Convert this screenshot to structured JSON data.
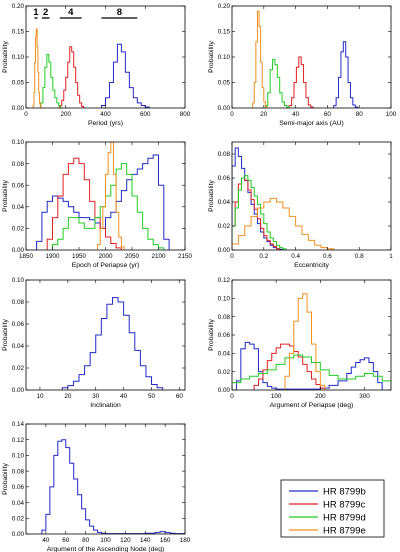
{
  "colors": {
    "HR 8799b": "#1f2bc4",
    "HR 8799c": "#e02020",
    "HR 8799d": "#22cc22",
    "HR 8799e": "#f0901e"
  },
  "legend": [
    {
      "name": "HR 8799b",
      "color": "#1f2bc4"
    },
    {
      "name": "HR 8799c",
      "color": "#e02020"
    },
    {
      "name": "HR 8799d",
      "color": "#22cc22"
    },
    {
      "name": "HR 8799e",
      "color": "#f0901e"
    }
  ],
  "chart_data": [
    {
      "type": "histogram",
      "title": "",
      "xlabel": "Period (yrs)",
      "ylabel": "Probability",
      "xlim": [
        0,
        800
      ],
      "ylim": [
        0,
        0.2
      ],
      "xticks": [
        0,
        200,
        400,
        600,
        800
      ],
      "yticks": [
        0.0,
        0.05,
        0.1,
        0.15,
        0.2
      ],
      "ytick_labels": [
        "0.00",
        "0.05",
        "0.10",
        "0.15",
        "0.20"
      ],
      "annotations": [
        {
          "label": "1",
          "range": [
            42,
            58
          ]
        },
        {
          "label": "2",
          "range": [
            80,
            118
          ]
        },
        {
          "label": "4",
          "range": [
            170,
            280
          ]
        },
        {
          "label": "8",
          "range": [
            380,
            560
          ]
        }
      ],
      "series": [
        {
          "name": "HR 8799b",
          "bins": [
            380,
            400,
            420,
            440,
            460,
            480,
            500,
            520,
            540,
            560,
            580,
            600,
            620
          ],
          "values": [
            0.005,
            0.02,
            0.05,
            0.09,
            0.125,
            0.11,
            0.07,
            0.04,
            0.02,
            0.01,
            0.005,
            0.002
          ]
        },
        {
          "name": "HR 8799c",
          "bins": [
            170,
            180,
            190,
            200,
            210,
            220,
            230,
            240,
            250,
            260,
            270,
            280,
            290
          ],
          "values": [
            0.005,
            0.015,
            0.035,
            0.06,
            0.09,
            0.12,
            0.11,
            0.08,
            0.05,
            0.025,
            0.01,
            0.003
          ]
        },
        {
          "name": "HR 8799d",
          "bins": [
            75,
            85,
            95,
            105,
            115,
            125,
            135,
            145,
            155,
            165,
            175
          ],
          "values": [
            0.01,
            0.04,
            0.08,
            0.105,
            0.09,
            0.06,
            0.035,
            0.02,
            0.01,
            0.004
          ]
        },
        {
          "name": "HR 8799e",
          "bins": [
            36,
            40,
            44,
            48,
            52,
            56,
            60,
            64,
            68,
            72,
            76
          ],
          "values": [
            0.005,
            0.03,
            0.09,
            0.14,
            0.155,
            0.12,
            0.07,
            0.03,
            0.01,
            0.003
          ]
        }
      ]
    },
    {
      "type": "histogram",
      "title": "",
      "xlabel": "Semi-major axis (AU)",
      "ylabel": "Probability",
      "xlim": [
        0,
        100
      ],
      "ylim": [
        0,
        0.2
      ],
      "xticks": [
        0,
        20,
        40,
        60,
        80,
        100
      ],
      "yticks": [
        0.0,
        0.05,
        0.1,
        0.15,
        0.2
      ],
      "ytick_labels": [
        "0.00",
        "0.05",
        "0.10",
        "0.15",
        "0.20"
      ],
      "series": [
        {
          "name": "HR 8799b",
          "bins": [
            64,
            65.5,
            67,
            68.5,
            70,
            71.5,
            73,
            74.5,
            76,
            77.5,
            79
          ],
          "values": [
            0.005,
            0.02,
            0.06,
            0.11,
            0.13,
            0.1,
            0.05,
            0.02,
            0.006,
            0.002
          ]
        },
        {
          "name": "HR 8799c",
          "bins": [
            36,
            37.5,
            39,
            40.5,
            42,
            43.5,
            45,
            46.5,
            48,
            49.5,
            51
          ],
          "values": [
            0.005,
            0.02,
            0.05,
            0.08,
            0.1,
            0.085,
            0.05,
            0.02,
            0.006,
            0.002
          ]
        },
        {
          "name": "HR 8799d",
          "bins": [
            21,
            22.5,
            24,
            25.5,
            27,
            28.5,
            30,
            31.5,
            33,
            34.5,
            36
          ],
          "values": [
            0.005,
            0.03,
            0.075,
            0.095,
            0.085,
            0.06,
            0.03,
            0.012,
            0.005,
            0.002
          ]
        },
        {
          "name": "HR 8799e",
          "bins": [
            13,
            14,
            15,
            16,
            17,
            18,
            19,
            20,
            21,
            22
          ],
          "values": [
            0.01,
            0.05,
            0.13,
            0.19,
            0.16,
            0.09,
            0.04,
            0.012,
            0.003
          ]
        }
      ]
    },
    {
      "type": "histogram",
      "title": "",
      "xlabel": "Epoch of Periapse (yr)",
      "ylabel": "Probability",
      "xlim": [
        1850,
        2150
      ],
      "ylim": [
        0,
        0.1
      ],
      "xticks": [
        1850,
        1900,
        1950,
        2000,
        2050,
        2100,
        2150
      ],
      "yticks": [
        0.0,
        0.02,
        0.04,
        0.06,
        0.08,
        0.1
      ],
      "ytick_labels": [
        "0.00",
        "0.02",
        "0.04",
        "0.06",
        "0.08",
        "0.10"
      ],
      "series": [
        {
          "name": "HR 8799b",
          "bins": [
            1870,
            1880,
            1890,
            1900,
            1910,
            1920,
            1930,
            1940,
            1950,
            1960,
            1970,
            1980,
            1990,
            2000,
            2010,
            2020,
            2030,
            2040,
            2050,
            2060,
            2070,
            2080,
            2090,
            2100,
            2110,
            2120
          ],
          "values": [
            0.008,
            0.035,
            0.045,
            0.05,
            0.048,
            0.045,
            0.04,
            0.035,
            0.03,
            0.03,
            0.028,
            0.025,
            0.02,
            0.03,
            0.035,
            0.045,
            0.055,
            0.065,
            0.07,
            0.075,
            0.08,
            0.085,
            0.088,
            0.06,
            0.01
          ]
        },
        {
          "name": "HR 8799c",
          "bins": [
            1890,
            1900,
            1910,
            1920,
            1930,
            1940,
            1950,
            1960,
            1970,
            1980,
            1990,
            2000,
            2010,
            2020,
            2030
          ],
          "values": [
            0.01,
            0.03,
            0.05,
            0.07,
            0.08,
            0.085,
            0.08,
            0.065,
            0.045,
            0.03,
            0.02,
            0.012,
            0.006,
            0.002
          ]
        },
        {
          "name": "HR 8799d",
          "bins": [
            1900,
            1910,
            1920,
            1930,
            1940,
            1950,
            1960,
            1970,
            1980,
            1990,
            2000,
            2010,
            2020,
            2030,
            2040,
            2050,
            2060,
            2070,
            2080,
            2090,
            2100,
            2110
          ],
          "values": [
            0.005,
            0.01,
            0.02,
            0.03,
            0.03,
            0.025,
            0.02,
            0.02,
            0.03,
            0.04,
            0.05,
            0.06,
            0.075,
            0.08,
            0.07,
            0.05,
            0.035,
            0.02,
            0.01,
            0.005,
            0.002
          ]
        },
        {
          "name": "HR 8799e",
          "bins": [
            1985,
            1990,
            1995,
            2000,
            2005,
            2010,
            2015,
            2020,
            2025,
            2030,
            2035
          ],
          "values": [
            0.005,
            0.02,
            0.04,
            0.07,
            0.09,
            0.1,
            0.07,
            0.035,
            0.012,
            0.003
          ]
        }
      ]
    },
    {
      "type": "histogram",
      "title": "",
      "xlabel": "Eccentricity",
      "ylabel": "Probability",
      "xlim": [
        0,
        1
      ],
      "ylim": [
        0,
        0.09
      ],
      "xticks": [
        0.0,
        0.2,
        0.4,
        0.6,
        0.8,
        1.0
      ],
      "yticks": [
        0.0,
        0.02,
        0.04,
        0.06,
        0.08
      ],
      "ytick_labels": [
        "0.00",
        "0.02",
        "0.04",
        "0.06",
        "0.08"
      ],
      "series": [
        {
          "name": "HR 8799b",
          "bins": [
            0.0,
            0.02,
            0.04,
            0.06,
            0.08,
            0.1,
            0.12,
            0.14,
            0.16,
            0.18,
            0.2,
            0.22,
            0.24,
            0.26,
            0.28,
            0.3,
            0.32
          ],
          "values": [
            0.07,
            0.085,
            0.078,
            0.068,
            0.058,
            0.048,
            0.038,
            0.03,
            0.022,
            0.015,
            0.01,
            0.007,
            0.004,
            0.002,
            0.001,
            0.0005
          ]
        },
        {
          "name": "HR 8799c",
          "bins": [
            0.0,
            0.02,
            0.04,
            0.06,
            0.08,
            0.1,
            0.12,
            0.14,
            0.16,
            0.18,
            0.2,
            0.22,
            0.24,
            0.26,
            0.28,
            0.3
          ],
          "values": [
            0.02,
            0.04,
            0.055,
            0.06,
            0.058,
            0.05,
            0.042,
            0.034,
            0.026,
            0.018,
            0.012,
            0.008,
            0.005,
            0.003,
            0.001
          ]
        },
        {
          "name": "HR 8799d",
          "bins": [
            0.0,
            0.02,
            0.04,
            0.06,
            0.08,
            0.1,
            0.12,
            0.14,
            0.16,
            0.18,
            0.2,
            0.22,
            0.24,
            0.26,
            0.28,
            0.3,
            0.32,
            0.34
          ],
          "values": [
            0.02,
            0.035,
            0.05,
            0.06,
            0.062,
            0.058,
            0.052,
            0.045,
            0.038,
            0.03,
            0.022,
            0.015,
            0.01,
            0.007,
            0.004,
            0.002,
            0.001
          ]
        },
        {
          "name": "HR 8799e",
          "bins": [
            0.0,
            0.04,
            0.08,
            0.12,
            0.16,
            0.2,
            0.24,
            0.28,
            0.32,
            0.36,
            0.4,
            0.44,
            0.48,
            0.52,
            0.56,
            0.6,
            0.64
          ],
          "values": [
            0.005,
            0.012,
            0.02,
            0.028,
            0.035,
            0.04,
            0.043,
            0.04,
            0.035,
            0.028,
            0.02,
            0.013,
            0.008,
            0.004,
            0.002,
            0.001
          ]
        }
      ]
    },
    {
      "type": "histogram",
      "title": "",
      "xlabel": "Inclination",
      "ylabel": "Probability",
      "xlim": [
        5,
        62
      ],
      "ylim": [
        0,
        0.1
      ],
      "xticks": [
        10,
        20,
        30,
        40,
        50,
        60
      ],
      "yticks": [
        0.0,
        0.02,
        0.04,
        0.06,
        0.08,
        0.1
      ],
      "ytick_labels": [
        "0.00",
        "0.02",
        "0.04",
        "0.06",
        "0.08",
        "0.10"
      ],
      "series": [
        {
          "name": "HR 8799b",
          "bins": [
            18,
            20,
            22,
            24,
            26,
            28,
            30,
            32,
            34,
            36,
            38,
            40,
            42,
            44,
            46,
            48,
            50,
            52,
            54
          ],
          "values": [
            0.002,
            0.004,
            0.008,
            0.014,
            0.022,
            0.034,
            0.05,
            0.065,
            0.078,
            0.084,
            0.08,
            0.068,
            0.052,
            0.036,
            0.022,
            0.012,
            0.005,
            0.002
          ]
        }
      ]
    },
    {
      "type": "histogram",
      "title": "",
      "xlabel": "Argument of Periapse (deg)",
      "ylabel": "Probability",
      "xlim": [
        0,
        360
      ],
      "ylim": [
        0,
        0.12
      ],
      "xticks": [
        0,
        100,
        200,
        300
      ],
      "yticks": [
        0.0,
        0.02,
        0.04,
        0.06,
        0.08,
        0.1,
        0.12
      ],
      "ytick_labels": [
        "0.00",
        "0.02",
        "0.04",
        "0.06",
        "0.08",
        "0.10",
        "0.12"
      ],
      "series": [
        {
          "name": "HR 8799b",
          "bins": [
            10,
            20,
            30,
            40,
            50,
            60,
            70,
            80,
            90,
            100,
            120,
            140,
            160,
            180,
            200,
            220,
            240,
            260,
            270,
            280,
            290,
            300,
            310,
            320,
            330,
            340
          ],
          "values": [
            0.01,
            0.045,
            0.052,
            0.05,
            0.045,
            0.02,
            0.008,
            0.004,
            0.002,
            0.001,
            0.001,
            0.001,
            0.001,
            0.001,
            0.002,
            0.005,
            0.01,
            0.018,
            0.025,
            0.03,
            0.033,
            0.035,
            0.03,
            0.02,
            0.008
          ]
        },
        {
          "name": "HR 8799c",
          "bins": [
            50,
            60,
            70,
            80,
            90,
            100,
            110,
            120,
            130,
            140,
            150,
            160,
            170,
            180,
            190,
            200,
            210
          ],
          "values": [
            0.005,
            0.012,
            0.022,
            0.032,
            0.04,
            0.046,
            0.05,
            0.05,
            0.048,
            0.042,
            0.036,
            0.028,
            0.02,
            0.012,
            0.006,
            0.002
          ]
        },
        {
          "name": "HR 8799d",
          "bins": [
            0,
            20,
            40,
            60,
            80,
            100,
            120,
            140,
            160,
            180,
            200,
            220,
            240,
            260,
            280,
            300,
            320,
            340,
            360
          ],
          "values": [
            0.008,
            0.012,
            0.015,
            0.018,
            0.022,
            0.028,
            0.035,
            0.038,
            0.036,
            0.03,
            0.022,
            0.016,
            0.012,
            0.012,
            0.015,
            0.018,
            0.015,
            0.01
          ]
        },
        {
          "name": "HR 8799e",
          "bins": [
            120,
            130,
            140,
            150,
            160,
            170,
            180,
            190,
            200,
            210
          ],
          "values": [
            0.015,
            0.04,
            0.075,
            0.1,
            0.105,
            0.085,
            0.05,
            0.02,
            0.005
          ]
        }
      ]
    },
    {
      "type": "histogram",
      "title": "",
      "xlabel": "Argument of the Ascending Node (deg)",
      "ylabel": "Probability",
      "xlim": [
        20,
        180
      ],
      "ylim": [
        0,
        0.14
      ],
      "xticks": [
        40,
        60,
        80,
        100,
        120,
        140,
        160,
        180
      ],
      "yticks": [
        0.0,
        0.02,
        0.04,
        0.06,
        0.08,
        0.1,
        0.12,
        0.14
      ],
      "ytick_labels": [
        "0.00",
        "0.02",
        "0.04",
        "0.06",
        "0.08",
        "0.10",
        "0.12",
        "0.14"
      ],
      "series": [
        {
          "name": "HR 8799b",
          "bins": [
            36,
            40,
            44,
            48,
            52,
            56,
            60,
            64,
            68,
            72,
            76,
            80,
            84,
            88,
            92,
            96,
            100,
            110,
            120,
            130,
            140,
            150,
            155,
            160,
            165,
            170,
            180
          ],
          "values": [
            0.005,
            0.025,
            0.06,
            0.1,
            0.118,
            0.12,
            0.11,
            0.09,
            0.07,
            0.05,
            0.032,
            0.018,
            0.01,
            0.005,
            0.002,
            0.001,
            0.0005,
            0.0005,
            0.0005,
            0.0005,
            0.001,
            0.002,
            0.003,
            0.002,
            0.001,
            0.0005
          ]
        }
      ]
    }
  ]
}
